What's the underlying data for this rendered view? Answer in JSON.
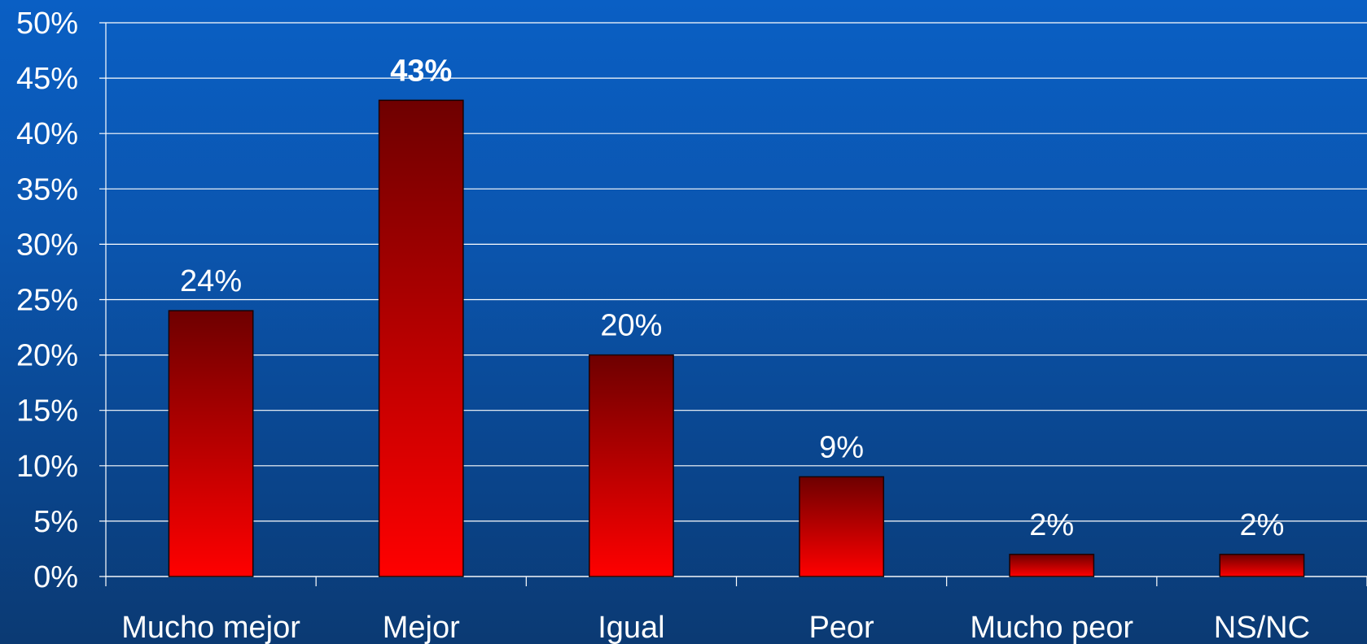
{
  "chart_data": {
    "type": "bar",
    "title": "",
    "xlabel": "",
    "ylabel": "",
    "categories": [
      "Mucho mejor",
      "Mejor",
      "Igual",
      "Peor",
      "Mucho peor",
      "NS/NC"
    ],
    "values": [
      24,
      43,
      20,
      9,
      2,
      2
    ],
    "data_labels": [
      "24%",
      "43%",
      "20%",
      "9%",
      "2%",
      "2%"
    ],
    "highlighted_index": 1,
    "ylim": [
      0,
      50
    ],
    "y_ticks": [
      0,
      5,
      10,
      15,
      20,
      25,
      30,
      35,
      40,
      45,
      50
    ],
    "y_tick_labels": [
      "0%",
      "5%",
      "10%",
      "15%",
      "20%",
      "25%",
      "30%",
      "35%",
      "40%",
      "45%",
      "50%"
    ],
    "grid": true,
    "legend": "none",
    "colors": {
      "bar_top": "#6e0000",
      "bar_bottom": "#ff0000",
      "bar_border": "#1a0000",
      "gridline": "#ffffff",
      "text": "#ffffff"
    }
  }
}
